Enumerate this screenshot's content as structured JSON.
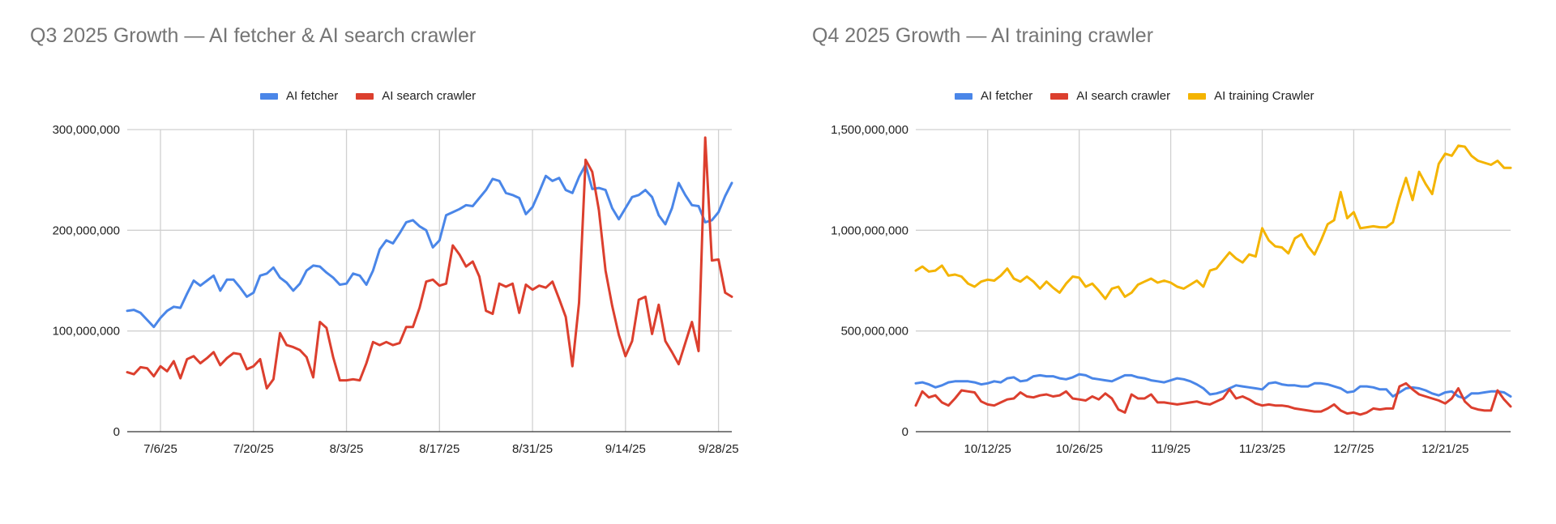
{
  "chart_data": [
    {
      "type": "line",
      "title": "Q3 2025 Growth — AI fetcher & AI search crawler",
      "xlabel": "",
      "ylabel": "",
      "x_range": [
        "7/1/25",
        "9/30/25"
      ],
      "x_frequency": "daily",
      "x_ticks": [
        "7/6/25",
        "7/20/25",
        "8/3/25",
        "8/17/25",
        "8/31/25",
        "9/14/25",
        "9/28/25"
      ],
      "y_ticks": [
        0,
        100000000,
        200000000,
        300000000
      ],
      "y_tick_labels": [
        "0",
        "100,000,000",
        "200,000,000",
        "300,000,000"
      ],
      "ylim": [
        0,
        300000000
      ],
      "grid": true,
      "legend_position": "top",
      "series": [
        {
          "name": "AI fetcher",
          "color": "#4a86e8",
          "values": [
            120000000,
            121000000,
            118000000,
            111000000,
            104000000,
            113000000,
            120000000,
            124000000,
            123000000,
            137000000,
            150000000,
            145000000,
            150000000,
            155000000,
            140000000,
            151000000,
            151000000,
            143000000,
            134000000,
            138000000,
            155000000,
            157000000,
            163000000,
            153000000,
            148000000,
            140000000,
            147000000,
            160000000,
            165000000,
            164000000,
            158000000,
            153000000,
            146000000,
            147000000,
            157000000,
            155000000,
            146000000,
            160000000,
            181000000,
            190000000,
            187000000,
            197000000,
            208000000,
            210000000,
            204000000,
            200000000,
            183000000,
            190000000,
            215000000,
            218000000,
            221000000,
            225000000,
            224000000,
            232000000,
            240000000,
            251000000,
            249000000,
            237000000,
            235000000,
            232000000,
            216000000,
            223000000,
            238000000,
            254000000,
            249000000,
            252000000,
            240000000,
            237000000,
            253000000,
            265000000,
            241000000,
            242000000,
            240000000,
            222000000,
            211000000,
            222000000,
            233000000,
            235000000,
            240000000,
            233000000,
            215000000,
            206000000,
            222000000,
            247000000,
            235000000,
            225000000,
            224000000,
            208000000,
            210000000,
            218000000,
            234000000,
            247000000
          ]
        },
        {
          "name": "AI search crawler",
          "color": "#dc3f2e",
          "values": [
            59000000,
            57000000,
            64000000,
            63000000,
            55000000,
            65000000,
            60000000,
            70000000,
            53000000,
            72000000,
            75000000,
            68000000,
            73000000,
            79000000,
            66000000,
            73000000,
            78000000,
            77000000,
            62000000,
            65000000,
            72000000,
            43000000,
            52000000,
            98000000,
            86000000,
            84000000,
            81000000,
            74000000,
            54000000,
            109000000,
            103000000,
            74000000,
            51000000,
            51000000,
            52000000,
            51000000,
            68000000,
            89000000,
            86000000,
            89000000,
            86000000,
            88000000,
            104000000,
            104000000,
            123000000,
            149000000,
            151000000,
            145000000,
            147000000,
            185000000,
            176000000,
            164000000,
            169000000,
            154000000,
            120000000,
            117000000,
            147000000,
            144000000,
            147000000,
            118000000,
            146000000,
            141000000,
            145000000,
            143000000,
            149000000,
            132000000,
            114000000,
            65000000,
            128000000,
            270000000,
            258000000,
            220000000,
            160000000,
            125000000,
            96000000,
            75000000,
            90000000,
            131000000,
            134000000,
            97000000,
            126000000,
            90000000,
            79000000,
            67000000,
            88000000,
            109000000,
            80000000,
            292000000,
            170000000,
            171000000,
            138000000,
            134000000
          ]
        }
      ]
    },
    {
      "type": "line",
      "title": "Q4 2025 Growth — AI training crawler",
      "xlabel": "",
      "ylabel": "",
      "x_range": [
        "10/1/25",
        "12/31/25"
      ],
      "x_frequency": "daily",
      "x_ticks": [
        "10/12/25",
        "10/26/25",
        "11/9/25",
        "11/23/25",
        "12/7/25",
        "12/21/25"
      ],
      "y_ticks": [
        0,
        500000000,
        1000000000,
        1500000000
      ],
      "y_tick_labels": [
        "0",
        "500,000,000",
        "1,000,000,000",
        "1,500,000,000"
      ],
      "ylim": [
        0,
        1500000000
      ],
      "grid": true,
      "legend_position": "top",
      "series": [
        {
          "name": "AI fetcher",
          "color": "#4a86e8",
          "values": [
            240000000,
            245000000,
            235000000,
            220000000,
            230000000,
            245000000,
            250000000,
            250000000,
            250000000,
            245000000,
            235000000,
            240000000,
            250000000,
            245000000,
            265000000,
            270000000,
            250000000,
            255000000,
            275000000,
            280000000,
            275000000,
            275000000,
            265000000,
            260000000,
            270000000,
            285000000,
            280000000,
            265000000,
            260000000,
            255000000,
            250000000,
            265000000,
            280000000,
            280000000,
            270000000,
            265000000,
            255000000,
            250000000,
            245000000,
            255000000,
            265000000,
            260000000,
            250000000,
            235000000,
            215000000,
            185000000,
            190000000,
            200000000,
            215000000,
            230000000,
            225000000,
            220000000,
            215000000,
            210000000,
            240000000,
            245000000,
            235000000,
            230000000,
            230000000,
            225000000,
            225000000,
            240000000,
            240000000,
            235000000,
            225000000,
            215000000,
            195000000,
            200000000,
            225000000,
            225000000,
            220000000,
            210000000,
            210000000,
            175000000,
            195000000,
            215000000,
            220000000,
            215000000,
            205000000,
            190000000,
            180000000,
            195000000,
            200000000,
            175000000,
            165000000,
            190000000,
            190000000,
            195000000,
            200000000,
            200000000,
            195000000,
            175000000
          ]
        },
        {
          "name": "AI search crawler",
          "color": "#dc3f2e",
          "values": [
            130000000,
            200000000,
            170000000,
            180000000,
            145000000,
            130000000,
            165000000,
            205000000,
            200000000,
            195000000,
            150000000,
            135000000,
            130000000,
            145000000,
            160000000,
            165000000,
            195000000,
            175000000,
            170000000,
            180000000,
            185000000,
            175000000,
            180000000,
            200000000,
            165000000,
            160000000,
            155000000,
            175000000,
            160000000,
            190000000,
            165000000,
            110000000,
            95000000,
            185000000,
            165000000,
            165000000,
            185000000,
            145000000,
            145000000,
            140000000,
            135000000,
            140000000,
            145000000,
            150000000,
            140000000,
            135000000,
            150000000,
            165000000,
            210000000,
            165000000,
            175000000,
            160000000,
            140000000,
            130000000,
            135000000,
            130000000,
            130000000,
            125000000,
            115000000,
            110000000,
            105000000,
            100000000,
            100000000,
            115000000,
            135000000,
            105000000,
            90000000,
            95000000,
            85000000,
            95000000,
            115000000,
            110000000,
            115000000,
            115000000,
            225000000,
            240000000,
            210000000,
            185000000,
            175000000,
            165000000,
            155000000,
            140000000,
            165000000,
            215000000,
            150000000,
            120000000,
            110000000,
            105000000,
            105000000,
            205000000,
            160000000,
            125000000
          ]
        },
        {
          "name": "AI training Crawler",
          "color": "#f4b400",
          "values": [
            800000000,
            820000000,
            795000000,
            800000000,
            825000000,
            775000000,
            780000000,
            770000000,
            735000000,
            720000000,
            745000000,
            755000000,
            750000000,
            775000000,
            810000000,
            760000000,
            745000000,
            770000000,
            745000000,
            710000000,
            745000000,
            715000000,
            690000000,
            735000000,
            770000000,
            765000000,
            720000000,
            735000000,
            700000000,
            660000000,
            710000000,
            720000000,
            670000000,
            690000000,
            730000000,
            745000000,
            760000000,
            740000000,
            750000000,
            740000000,
            720000000,
            710000000,
            730000000,
            750000000,
            720000000,
            800000000,
            810000000,
            850000000,
            890000000,
            860000000,
            840000000,
            880000000,
            870000000,
            1010000000,
            950000000,
            920000000,
            915000000,
            885000000,
            960000000,
            980000000,
            920000000,
            880000000,
            950000000,
            1030000000,
            1050000000,
            1190000000,
            1060000000,
            1090000000,
            1010000000,
            1015000000,
            1020000000,
            1015000000,
            1015000000,
            1040000000,
            1160000000,
            1260000000,
            1150000000,
            1290000000,
            1230000000,
            1180000000,
            1330000000,
            1380000000,
            1370000000,
            1420000000,
            1415000000,
            1370000000,
            1345000000,
            1335000000,
            1325000000,
            1345000000,
            1310000000,
            1310000000
          ]
        }
      ]
    }
  ]
}
